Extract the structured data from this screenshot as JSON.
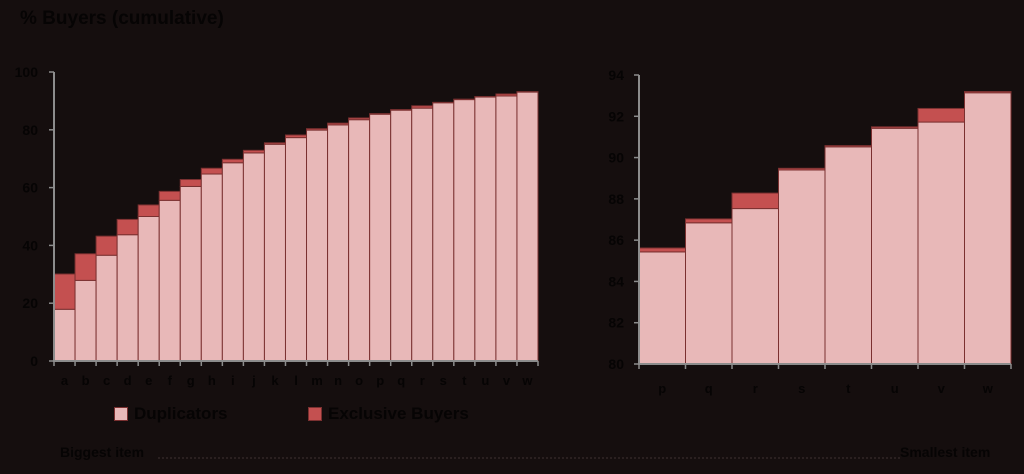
{
  "title": "% Buyers (cumulative)",
  "legend": {
    "duplicators": "Duplicators",
    "exclusive": "Exclusive Buyers"
  },
  "footer": {
    "left": "Biggest item",
    "right": "Smallest item"
  },
  "colors": {
    "background": "#150e0e",
    "duplicators": "#e8b8b8",
    "exclusive": "#c45050",
    "border": "#7a3030",
    "axis": "#8c8c8c"
  },
  "chart_data": [
    {
      "type": "bar",
      "stacked": true,
      "title": "% Buyers (cumulative)",
      "xlabel": "",
      "ylabel": "% Buyers (cumulative)",
      "ylim": [
        0,
        100
      ],
      "yticks": [
        0,
        20,
        40,
        60,
        80,
        100
      ],
      "categories": [
        "a",
        "b",
        "c",
        "d",
        "e",
        "f",
        "g",
        "h",
        "i",
        "j",
        "k",
        "l",
        "m",
        "n",
        "o",
        "p",
        "q",
        "r",
        "s",
        "t",
        "u",
        "v",
        "w"
      ],
      "series": [
        {
          "name": "Duplicators",
          "values": [
            17.9,
            27.9,
            36.6,
            43.7,
            50.0,
            55.6,
            60.4,
            64.7,
            68.6,
            72.0,
            75.0,
            77.3,
            79.9,
            81.7,
            83.5,
            85.4,
            86.8,
            87.5,
            89.4,
            90.5,
            91.4,
            91.7,
            93.1
          ]
        },
        {
          "name": "Exclusive Buyers",
          "values": [
            12.2,
            9.2,
            6.6,
            5.3,
            4.0,
            3.1,
            2.4,
            2.0,
            1.2,
            0.9,
            0.5,
            0.9,
            0.5,
            0.6,
            0.6,
            0.2,
            0.2,
            0.8,
            0.1,
            0.1,
            0.1,
            0.7,
            0.1
          ]
        }
      ],
      "legend_position": "bottom",
      "grid": false
    },
    {
      "type": "bar",
      "stacked": true,
      "title": "",
      "xlabel": "",
      "ylabel": "",
      "ylim": [
        80,
        94
      ],
      "yticks": [
        80,
        82,
        84,
        86,
        88,
        90,
        92,
        94
      ],
      "categories": [
        "p",
        "q",
        "r",
        "s",
        "t",
        "u",
        "v",
        "w"
      ],
      "series": [
        {
          "name": "Duplicators",
          "values": [
            85.43,
            86.84,
            87.53,
            89.4,
            90.52,
            91.42,
            91.72,
            93.14
          ]
        },
        {
          "name": "Exclusive Buyers",
          "values": [
            0.19,
            0.19,
            0.75,
            0.08,
            0.06,
            0.07,
            0.66,
            0.06
          ]
        }
      ],
      "grid": false
    }
  ]
}
